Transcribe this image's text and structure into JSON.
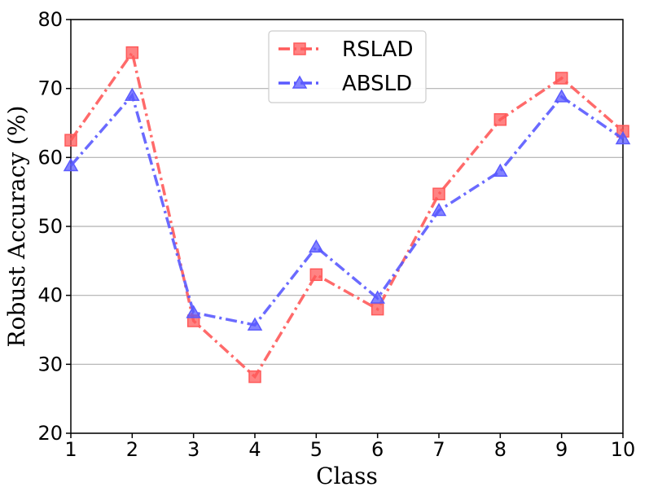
{
  "chart_data": {
    "type": "line",
    "xlabel": "Class",
    "ylabel": "Robust Accuracy (%)",
    "x": [
      1,
      2,
      3,
      4,
      5,
      6,
      7,
      8,
      9,
      10
    ],
    "xlim": [
      1,
      10
    ],
    "ylim": [
      20,
      80
    ],
    "yticks": [
      20,
      30,
      40,
      50,
      60,
      70,
      80
    ],
    "grid": "horizontal",
    "legend_position": "top-center",
    "series": [
      {
        "name": "RSLAD",
        "color": "#ff5a5a",
        "marker": "square",
        "linestyle": "dash-dot",
        "values": [
          62.5,
          75.2,
          36.3,
          28.2,
          43.0,
          38.0,
          54.7,
          65.5,
          71.5,
          63.8
        ]
      },
      {
        "name": "ABSLD",
        "color": "#5a5aff",
        "marker": "triangle",
        "linestyle": "dash-dot",
        "values": [
          58.8,
          69.0,
          37.5,
          35.7,
          47.0,
          39.6,
          52.3,
          58.0,
          68.8,
          62.7
        ]
      }
    ]
  }
}
